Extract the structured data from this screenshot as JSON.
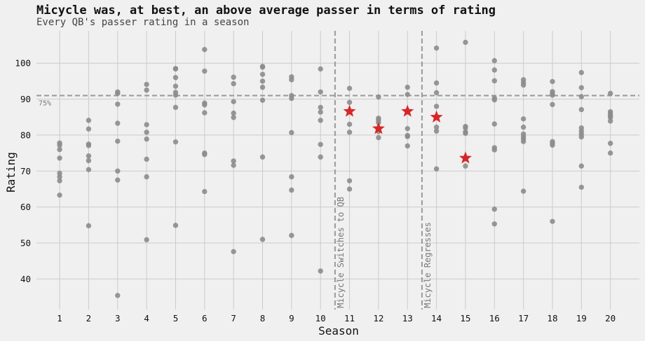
{
  "chart_data": {
    "type": "scatter",
    "title": "Micycle was, at best, an above average passer in terms of rating",
    "subtitle": "Every QB's passer rating in a season",
    "xlabel": "Season",
    "ylabel": "Rating",
    "xticks": [
      1,
      2,
      3,
      4,
      5,
      6,
      7,
      8,
      9,
      10,
      11,
      12,
      13,
      14,
      15,
      16,
      17,
      18,
      19,
      20
    ],
    "yticks": [
      40,
      50,
      60,
      70,
      80,
      90,
      100
    ],
    "xlim": [
      0.2,
      21
    ],
    "ylim": [
      31.5,
      109
    ],
    "grid": true,
    "reference_line": {
      "y": 91,
      "label": "75%"
    },
    "annotations": [
      {
        "x": 10.5,
        "label": "Micycle Switches to QB"
      },
      {
        "x": 13.5,
        "label": "Micycle Regresses"
      }
    ],
    "colors": {
      "points": "#8c8c8c",
      "highlight": "#d62728",
      "reference": "#999999",
      "background": "#f0f0f0",
      "grid": "#cbcbcb"
    },
    "series": [
      {
        "name": "",
        "points": [
          [
            1,
            77.8
          ],
          [
            1,
            77.2
          ],
          [
            1,
            76
          ],
          [
            1,
            73.6
          ],
          [
            1,
            69.4
          ],
          [
            1,
            68.4
          ],
          [
            1,
            67.3
          ],
          [
            1,
            63.3
          ],
          [
            2,
            84.1
          ],
          [
            2,
            81.7
          ],
          [
            2,
            77.5
          ],
          [
            2,
            77.1
          ],
          [
            2,
            74.2
          ],
          [
            2,
            72.9
          ],
          [
            2,
            70.4
          ],
          [
            2,
            54.8
          ],
          [
            3,
            92
          ],
          [
            3,
            91.6
          ],
          [
            3,
            88.6
          ],
          [
            3,
            83.3
          ],
          [
            3,
            78.3
          ],
          [
            3,
            70
          ],
          [
            3,
            67.5
          ],
          [
            3,
            35.4
          ],
          [
            4,
            94.1
          ],
          [
            4,
            92.5
          ],
          [
            4,
            82.9
          ],
          [
            4,
            80.8
          ],
          [
            4,
            78.9
          ],
          [
            4,
            73.3
          ],
          [
            4,
            68.4
          ],
          [
            4,
            50.9
          ],
          [
            5,
            98.5
          ],
          [
            5,
            98.4
          ],
          [
            5,
            96
          ],
          [
            5,
            93.6
          ],
          [
            5,
            91.9
          ],
          [
            5,
            91.1
          ],
          [
            5,
            87.7
          ],
          [
            5,
            78.1
          ],
          [
            5,
            54.9
          ],
          [
            6,
            103.8
          ],
          [
            6,
            97.8
          ],
          [
            6,
            88.9
          ],
          [
            6,
            88.4
          ],
          [
            6,
            86.2
          ],
          [
            6,
            75
          ],
          [
            6,
            74.6
          ],
          [
            6,
            64.3
          ],
          [
            7,
            96.1
          ],
          [
            7,
            94.3
          ],
          [
            7,
            89.3
          ],
          [
            7,
            86.1
          ],
          [
            7,
            84.9
          ],
          [
            7,
            72.8
          ],
          [
            7,
            71.6
          ],
          [
            7,
            47.6
          ],
          [
            8,
            99.1
          ],
          [
            8,
            98.9
          ],
          [
            8,
            96.9
          ],
          [
            8,
            95
          ],
          [
            8,
            93.3
          ],
          [
            8,
            89.7
          ],
          [
            8,
            73.9
          ],
          [
            8,
            51
          ],
          [
            9,
            96.2
          ],
          [
            9,
            95.4
          ],
          [
            9,
            91
          ],
          [
            9,
            90.2
          ],
          [
            9,
            80.7
          ],
          [
            9,
            68.4
          ],
          [
            9,
            64.7
          ],
          [
            9,
            52.1
          ],
          [
            10,
            98.4
          ],
          [
            10,
            92
          ],
          [
            10,
            87.7
          ],
          [
            10,
            86.4
          ],
          [
            10,
            84.1
          ],
          [
            10,
            77.4
          ],
          [
            10,
            73.9
          ],
          [
            10,
            42.2
          ],
          [
            11,
            93
          ],
          [
            11,
            89.1
          ],
          [
            11,
            83
          ],
          [
            11,
            80.8
          ],
          [
            11,
            67.3
          ],
          [
            11,
            65
          ],
          [
            12,
            90.6
          ],
          [
            12,
            84.7
          ],
          [
            12,
            84.2
          ],
          [
            12,
            83.5
          ],
          [
            12,
            81
          ],
          [
            12,
            79.3
          ],
          [
            13,
            93.3
          ],
          [
            13,
            91.3
          ],
          [
            13,
            81.8
          ],
          [
            13,
            79.9
          ],
          [
            13,
            79.6
          ],
          [
            13,
            77
          ],
          [
            14,
            104.2
          ],
          [
            14,
            94.5
          ],
          [
            14,
            91.8
          ],
          [
            14,
            88
          ],
          [
            14,
            82.2
          ],
          [
            14,
            81.1
          ],
          [
            14,
            70.6
          ],
          [
            15,
            105.8
          ],
          [
            15,
            82.4
          ],
          [
            15,
            82
          ],
          [
            15,
            80.9
          ],
          [
            15,
            80.5
          ],
          [
            15,
            71.4
          ],
          [
            16,
            100.7
          ],
          [
            16,
            98.1
          ],
          [
            16,
            95.1
          ],
          [
            16,
            90.3
          ],
          [
            16,
            89.8
          ],
          [
            16,
            83.1
          ],
          [
            16,
            76.5
          ],
          [
            16,
            75.9
          ],
          [
            16,
            59.4
          ],
          [
            16,
            55.3
          ],
          [
            17,
            95.4
          ],
          [
            17,
            94.6
          ],
          [
            17,
            93.9
          ],
          [
            17,
            84.5
          ],
          [
            17,
            82.2
          ],
          [
            17,
            80.3
          ],
          [
            17,
            79.5
          ],
          [
            17,
            78.9
          ],
          [
            17,
            78.2
          ],
          [
            17,
            64.4
          ],
          [
            18,
            94.9
          ],
          [
            18,
            92.1
          ],
          [
            18,
            91.5
          ],
          [
            18,
            91.1
          ],
          [
            18,
            88.5
          ],
          [
            18,
            78.2
          ],
          [
            18,
            77.7
          ],
          [
            18,
            77.2
          ],
          [
            18,
            56
          ],
          [
            19,
            97.4
          ],
          [
            19,
            93.2
          ],
          [
            19,
            90.7
          ],
          [
            19,
            87.1
          ],
          [
            19,
            82
          ],
          [
            19,
            81.1
          ],
          [
            19,
            80.3
          ],
          [
            19,
            79.5
          ],
          [
            19,
            71.4
          ],
          [
            19,
            65.5
          ],
          [
            20,
            91.6
          ],
          [
            20,
            86.5
          ],
          [
            20,
            86
          ],
          [
            20,
            85.4
          ],
          [
            20,
            84.9
          ],
          [
            20,
            83.9
          ],
          [
            20,
            77.7
          ],
          [
            20,
            75
          ]
        ]
      },
      {
        "name": "",
        "points": [
          [
            11,
            86.6
          ],
          [
            12,
            81.8
          ],
          [
            13,
            86.6
          ],
          [
            14,
            85
          ],
          [
            15,
            73.6
          ]
        ]
      }
    ]
  }
}
